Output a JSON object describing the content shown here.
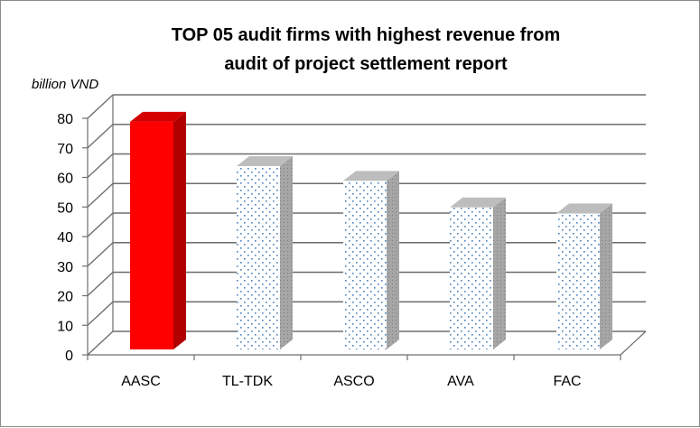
{
  "chart_data": {
    "type": "bar",
    "title_lines": [
      "TOP 05 audit firms with highest revenue from",
      "audit of project settlement report"
    ],
    "unit_label": "billion VND",
    "categories": [
      "AASC",
      "TL-TDK",
      "ASCO",
      "AVA",
      "FAC"
    ],
    "values": [
      77,
      62,
      57,
      48,
      46
    ],
    "ylim": [
      0,
      80
    ],
    "yticks": [
      0,
      10,
      20,
      30,
      40,
      50,
      60,
      70,
      80
    ],
    "grid": true,
    "style_3d": true,
    "colors": {
      "highlight": "#ff0000",
      "highlight_side": "#b00000",
      "highlight_top": "#d40000",
      "dotted_fill": "#ffffff",
      "dotted_pattern": "#4a7fc0",
      "dotted_side": "#a6a6a6",
      "dotted_top": "#bdbdbd",
      "gridline": "#6e6e6e"
    }
  }
}
